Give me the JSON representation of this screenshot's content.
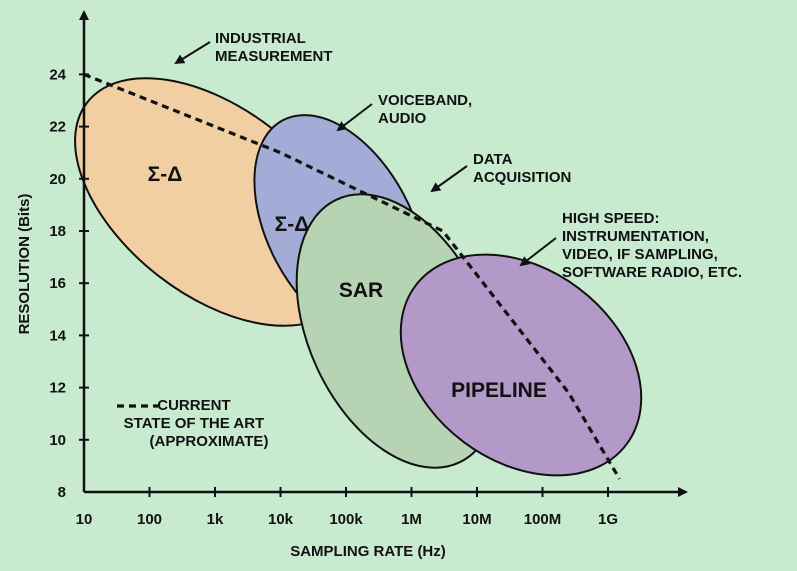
{
  "chart_data": {
    "type": "region-diagram",
    "xlabel": "SAMPLING RATE (Hz)",
    "ylabel": "RESOLUTION (Bits)",
    "x_scale": "log",
    "x_ticks": [
      "10",
      "100",
      "1k",
      "10k",
      "100k",
      "1M",
      "10M",
      "100M",
      "1G"
    ],
    "y_ticks": [
      "8",
      "10",
      "12",
      "14",
      "16",
      "18",
      "20",
      "22",
      "24"
    ],
    "colors": {
      "background": "#c8ebd0",
      "sigma_delta_industrial": "#f2cfa3",
      "sigma_delta_audio": "#a3abd7",
      "sar": "#b6d4b4",
      "pipeline": "#b299c8",
      "outline": "#111111"
    },
    "regions": [
      {
        "key": "industrial",
        "label": "Σ-Δ",
        "annotation": [
          "INDUSTRIAL",
          "MEASUREMENT"
        ]
      },
      {
        "key": "audio",
        "label": "Σ-Δ",
        "annotation": [
          "VOICEBAND,",
          "AUDIO"
        ]
      },
      {
        "key": "sar",
        "label": "SAR",
        "annotation": [
          "DATA",
          "ACQUISITION"
        ]
      },
      {
        "key": "pipeline",
        "label": "PIPELINE",
        "annotation": [
          "HIGH SPEED:",
          "INSTRUMENTATION,",
          "VIDEO, IF SAMPLING,",
          "SOFTWARE RADIO, ETC."
        ]
      }
    ],
    "state_of_the_art": {
      "legend": [
        "CURRENT",
        "STATE OF THE ART",
        "(APPROXIMATE)"
      ],
      "points": [
        {
          "x": 10,
          "y": 24
        },
        {
          "x": 10000,
          "y": 21
        },
        {
          "x": 3000000,
          "y": 18
        },
        {
          "x": 250000000,
          "y": 11.8
        },
        {
          "x": 1500000000,
          "y": 8.5
        }
      ]
    }
  }
}
